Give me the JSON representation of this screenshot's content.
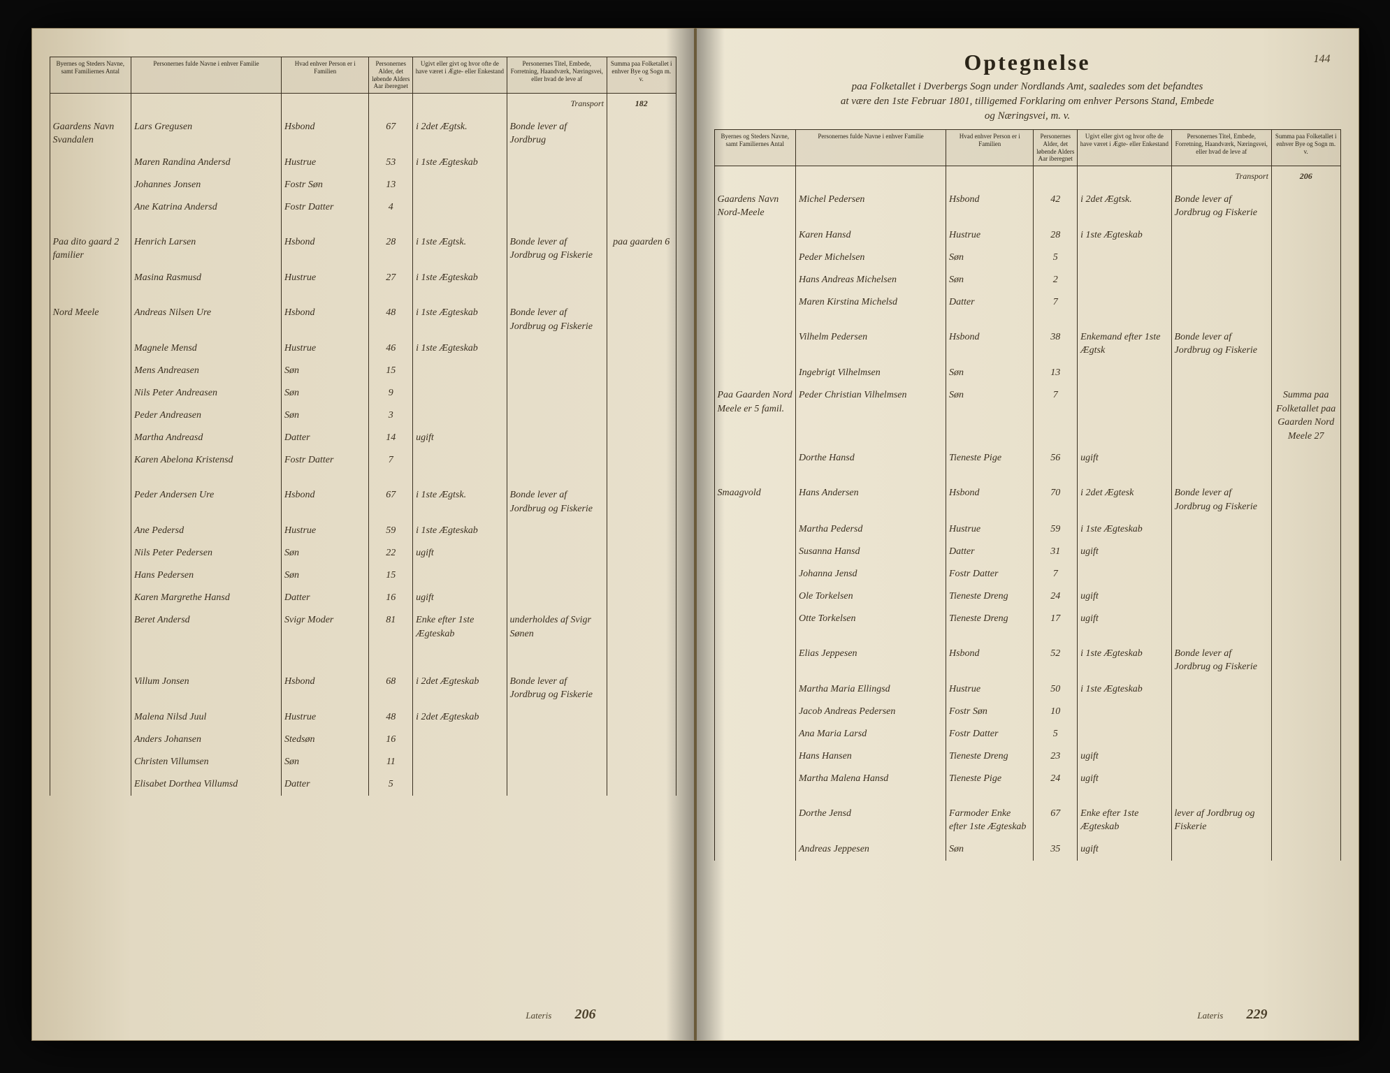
{
  "document": {
    "title": "Optegnelse",
    "subtitle1": "paa Folketallet i Dverbergs Sogn under Nordlands Amt, saaledes som det befandtes",
    "subtitle2": "at være den 1ste Februar 1801, tilligemed Forklaring om enhver Persons Stand, Embede",
    "subtitle3": "og Næringsvei, m. v.",
    "page_number": "144"
  },
  "headers": {
    "col1": "Byernes og Steders Navne, samt Familiernes Antal",
    "col2": "Personernes fulde Navne i enhver Familie",
    "col3": "Hvad enhver Person er i Familien",
    "col4": "Personernes Alder, det løbende Alders Aar iberegnet",
    "col5": "Ugivt eller givt og hvor ofte de have været i Ægte- eller Enkestand",
    "col6": "Personernes Titel, Embede, Forretning, Haandværk, Næringsvei, eller hvad de leve af",
    "col7": "Summa paa Folketallet i enhver Bye og Sogn m. v."
  },
  "transport": {
    "label": "Transport",
    "left_val": "182",
    "right_val": "206"
  },
  "lateris": {
    "label": "Lateris",
    "left_val": "206",
    "right_val": "229"
  },
  "left_page": {
    "rows": [
      {
        "place": "Gaardens Navn Svandalen",
        "name": "Lars Gregusen",
        "role": "Hsbond",
        "age": "67",
        "marital": "i 2det Ægtsk.",
        "title": "Bonde lever af Jordbrug",
        "sum": ""
      },
      {
        "place": "",
        "name": "Maren Randina Andersd",
        "role": "Hustrue",
        "age": "53",
        "marital": "i 1ste Ægteskab",
        "title": "",
        "sum": ""
      },
      {
        "place": "",
        "name": "Johannes Jonsen",
        "role": "Fostr Søn",
        "age": "13",
        "marital": "",
        "title": "",
        "sum": ""
      },
      {
        "place": "",
        "name": "Ane Katrina Andersd",
        "role": "Fostr Datter",
        "age": "4",
        "marital": "",
        "title": "",
        "sum": ""
      },
      {
        "place": "",
        "name": "",
        "role": "",
        "age": "",
        "marital": "",
        "title": "",
        "sum": "",
        "spacer": true
      },
      {
        "place": "Paa dito gaard 2 familier",
        "name": "Henrich Larsen",
        "role": "Hsbond",
        "age": "28",
        "marital": "i 1ste Ægtsk.",
        "title": "Bonde lever af Jordbrug og Fiskerie",
        "sum": "paa gaarden 6"
      },
      {
        "place": "",
        "name": "Masina Rasmusd",
        "role": "Hustrue",
        "age": "27",
        "marital": "i 1ste Ægteskab",
        "title": "",
        "sum": ""
      },
      {
        "place": "",
        "name": "",
        "role": "",
        "age": "",
        "marital": "",
        "title": "",
        "sum": "",
        "spacer": true
      },
      {
        "place": "Nord Meele",
        "name": "Andreas Nilsen Ure",
        "role": "Hsbond",
        "age": "48",
        "marital": "i 1ste Ægteskab",
        "title": "Bonde lever af Jordbrug og Fiskerie",
        "sum": ""
      },
      {
        "place": "",
        "name": "Magnele Mensd",
        "role": "Hustrue",
        "age": "46",
        "marital": "i 1ste Ægteskab",
        "title": "",
        "sum": ""
      },
      {
        "place": "",
        "name": "Mens Andreasen",
        "role": "Søn",
        "age": "15",
        "marital": "",
        "title": "",
        "sum": ""
      },
      {
        "place": "",
        "name": "Nils Peter Andreasen",
        "role": "Søn",
        "age": "9",
        "marital": "",
        "title": "",
        "sum": ""
      },
      {
        "place": "",
        "name": "Peder Andreasen",
        "role": "Søn",
        "age": "3",
        "marital": "",
        "title": "",
        "sum": ""
      },
      {
        "place": "",
        "name": "Martha Andreasd",
        "role": "Datter",
        "age": "14",
        "marital": "ugift",
        "title": "",
        "sum": ""
      },
      {
        "place": "",
        "name": "Karen Abelona Kristensd",
        "role": "Fostr Datter",
        "age": "7",
        "marital": "",
        "title": "",
        "sum": ""
      },
      {
        "place": "",
        "name": "",
        "role": "",
        "age": "",
        "marital": "",
        "title": "",
        "sum": "",
        "spacer": true
      },
      {
        "place": "",
        "name": "Peder Andersen Ure",
        "role": "Hsbond",
        "age": "67",
        "marital": "i 1ste Ægtsk.",
        "title": "Bonde lever af Jordbrug og Fiskerie",
        "sum": ""
      },
      {
        "place": "",
        "name": "Ane Pedersd",
        "role": "Hustrue",
        "age": "59",
        "marital": "i 1ste Ægteskab",
        "title": "",
        "sum": ""
      },
      {
        "place": "",
        "name": "Nils Peter Pedersen",
        "role": "Søn",
        "age": "22",
        "marital": "ugift",
        "title": "",
        "sum": ""
      },
      {
        "place": "",
        "name": "Hans Pedersen",
        "role": "Søn",
        "age": "15",
        "marital": "",
        "title": "",
        "sum": ""
      },
      {
        "place": "",
        "name": "Karen Margrethe Hansd",
        "role": "Datter",
        "age": "16",
        "marital": "ugift",
        "title": "",
        "sum": ""
      },
      {
        "place": "",
        "name": "Beret Andersd",
        "role": "Svigr Moder",
        "age": "81",
        "marital": "Enke efter 1ste Ægteskab",
        "title": "underholdes af Svigr Sønen",
        "sum": ""
      },
      {
        "place": "",
        "name": "",
        "role": "",
        "age": "",
        "marital": "",
        "title": "",
        "sum": "",
        "spacer": true
      },
      {
        "place": "",
        "name": "",
        "role": "",
        "age": "",
        "marital": "",
        "title": "",
        "sum": "",
        "spacer": true
      },
      {
        "place": "",
        "name": "Villum Jonsen",
        "role": "Hsbond",
        "age": "68",
        "marital": "i 2det Ægteskab",
        "title": "Bonde lever af Jordbrug og Fiskerie",
        "sum": ""
      },
      {
        "place": "",
        "name": "Malena Nilsd Juul",
        "role": "Hustrue",
        "age": "48",
        "marital": "i 2det Ægteskab",
        "title": "",
        "sum": ""
      },
      {
        "place": "",
        "name": "Anders Johansen",
        "role": "Stedsøn",
        "age": "16",
        "marital": "",
        "title": "",
        "sum": ""
      },
      {
        "place": "",
        "name": "Christen Villumsen",
        "role": "Søn",
        "age": "11",
        "marital": "",
        "title": "",
        "sum": ""
      },
      {
        "place": "",
        "name": "Elisabet Dorthea Villumsd",
        "role": "Datter",
        "age": "5",
        "marital": "",
        "title": "",
        "sum": ""
      }
    ]
  },
  "right_page": {
    "rows": [
      {
        "place": "Gaardens Navn Nord-Meele",
        "name": "Michel Pedersen",
        "role": "Hsbond",
        "age": "42",
        "marital": "i 2det Ægtsk.",
        "title": "Bonde lever af Jordbrug og Fiskerie",
        "sum": ""
      },
      {
        "place": "",
        "name": "Karen Hansd",
        "role": "Hustrue",
        "age": "28",
        "marital": "i 1ste Ægteskab",
        "title": "",
        "sum": ""
      },
      {
        "place": "",
        "name": "Peder Michelsen",
        "role": "Søn",
        "age": "5",
        "marital": "",
        "title": "",
        "sum": ""
      },
      {
        "place": "",
        "name": "Hans Andreas Michelsen",
        "role": "Søn",
        "age": "2",
        "marital": "",
        "title": "",
        "sum": ""
      },
      {
        "place": "",
        "name": "Maren Kirstina Michelsd",
        "role": "Datter",
        "age": "7",
        "marital": "",
        "title": "",
        "sum": ""
      },
      {
        "place": "",
        "name": "",
        "role": "",
        "age": "",
        "marital": "",
        "title": "",
        "sum": "",
        "spacer": true
      },
      {
        "place": "",
        "name": "Vilhelm Pedersen",
        "role": "Hsbond",
        "age": "38",
        "marital": "Enkemand efter 1ste Ægtsk",
        "title": "Bonde lever af Jordbrug og Fiskerie",
        "sum": ""
      },
      {
        "place": "",
        "name": "Ingebrigt Vilhelmsen",
        "role": "Søn",
        "age": "13",
        "marital": "",
        "title": "",
        "sum": ""
      },
      {
        "place": "Paa Gaarden Nord Meele er 5 famil.",
        "name": "Peder Christian Vilhelmsen",
        "role": "Søn",
        "age": "7",
        "marital": "",
        "title": "",
        "sum": "Summa paa Folketallet paa Gaarden Nord Meele 27"
      },
      {
        "place": "",
        "name": "Dorthe Hansd",
        "role": "Tieneste Pige",
        "age": "56",
        "marital": "ugift",
        "title": "",
        "sum": ""
      },
      {
        "place": "",
        "name": "",
        "role": "",
        "age": "",
        "marital": "",
        "title": "",
        "sum": "",
        "spacer": true
      },
      {
        "place": "Smaagvold",
        "name": "Hans Andersen",
        "role": "Hsbond",
        "age": "70",
        "marital": "i 2det Ægtesk",
        "title": "Bonde lever af Jordbrug og Fiskerie",
        "sum": ""
      },
      {
        "place": "",
        "name": "Martha Pedersd",
        "role": "Hustrue",
        "age": "59",
        "marital": "i 1ste Ægteskab",
        "title": "",
        "sum": ""
      },
      {
        "place": "",
        "name": "Susanna Hansd",
        "role": "Datter",
        "age": "31",
        "marital": "ugift",
        "title": "",
        "sum": ""
      },
      {
        "place": "",
        "name": "Johanna Jensd",
        "role": "Fostr Datter",
        "age": "7",
        "marital": "",
        "title": "",
        "sum": ""
      },
      {
        "place": "",
        "name": "Ole Torkelsen",
        "role": "Tieneste Dreng",
        "age": "24",
        "marital": "ugift",
        "title": "",
        "sum": ""
      },
      {
        "place": "",
        "name": "Otte Torkelsen",
        "role": "Tieneste Dreng",
        "age": "17",
        "marital": "ugift",
        "title": "",
        "sum": ""
      },
      {
        "place": "",
        "name": "",
        "role": "",
        "age": "",
        "marital": "",
        "title": "",
        "sum": "",
        "spacer": true
      },
      {
        "place": "",
        "name": "Elias Jeppesen",
        "role": "Hsbond",
        "age": "52",
        "marital": "i 1ste Ægteskab",
        "title": "Bonde lever af Jordbrug og Fiskerie",
        "sum": ""
      },
      {
        "place": "",
        "name": "Martha Maria Ellingsd",
        "role": "Hustrue",
        "age": "50",
        "marital": "i 1ste Ægteskab",
        "title": "",
        "sum": ""
      },
      {
        "place": "",
        "name": "Jacob Andreas Pedersen",
        "role": "Fostr Søn",
        "age": "10",
        "marital": "",
        "title": "",
        "sum": ""
      },
      {
        "place": "",
        "name": "Ana Maria Larsd",
        "role": "Fostr Datter",
        "age": "5",
        "marital": "",
        "title": "",
        "sum": ""
      },
      {
        "place": "",
        "name": "Hans Hansen",
        "role": "Tieneste Dreng",
        "age": "23",
        "marital": "ugift",
        "title": "",
        "sum": ""
      },
      {
        "place": "",
        "name": "Martha Malena Hansd",
        "role": "Tieneste Pige",
        "age": "24",
        "marital": "ugift",
        "title": "",
        "sum": ""
      },
      {
        "place": "",
        "name": "",
        "role": "",
        "age": "",
        "marital": "",
        "title": "",
        "sum": "",
        "spacer": true
      },
      {
        "place": "",
        "name": "Dorthe Jensd",
        "role": "Farmoder Enke efter 1ste Ægteskab",
        "age": "67",
        "marital": "Enke efter 1ste Ægteskab",
        "title": "lever af Jordbrug og Fiskerie",
        "sum": ""
      },
      {
        "place": "",
        "name": "Andreas Jeppesen",
        "role": "Søn",
        "age": "35",
        "marital": "ugift",
        "title": "",
        "sum": ""
      }
    ]
  }
}
